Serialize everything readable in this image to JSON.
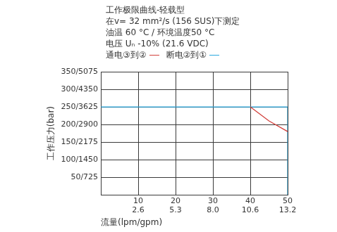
{
  "chart_data": {
    "type": "line",
    "title": "工作极限曲线-轻载型",
    "subtitle": [
      "在v= 32 mm²/s (156 SUS)下测定",
      "油温 60 °C / 环境温度50 °C",
      "电压 Uₙ -10% (21.6 VDC)"
    ],
    "x_label": "流量(lpm/gpm)",
    "y_label": "工作压力(bar)",
    "xlim": [
      0,
      50
    ],
    "xticks": [
      {
        "value": 10,
        "label": "10\n2.6"
      },
      {
        "value": 20,
        "label": "20\n5.3"
      },
      {
        "value": 30,
        "label": "30\n8.0"
      },
      {
        "value": 40,
        "label": "40\n10.6"
      },
      {
        "value": 50,
        "label": "50\n13.2"
      }
    ],
    "ylim": [
      0,
      350
    ],
    "yticks": [
      {
        "value": 50,
        "label": "50/725"
      },
      {
        "value": 100,
        "label": "100/1450"
      },
      {
        "value": 150,
        "label": "150/2175"
      },
      {
        "value": 200,
        "label": "200/2900"
      },
      {
        "value": 250,
        "label": "250/3625"
      },
      {
        "value": 300,
        "label": "300/4350"
      },
      {
        "value": 350,
        "label": "350/5075"
      }
    ],
    "grid": true,
    "series": [
      {
        "name": "通电③到②",
        "color": "#d2413c",
        "x": [
          40,
          45,
          50
        ],
        "values": [
          250,
          210,
          180
        ]
      },
      {
        "name": "断电②到①",
        "color": "#2aa9e0",
        "x": [
          0,
          50,
          50
        ],
        "values": [
          250,
          250,
          0
        ]
      }
    ]
  }
}
